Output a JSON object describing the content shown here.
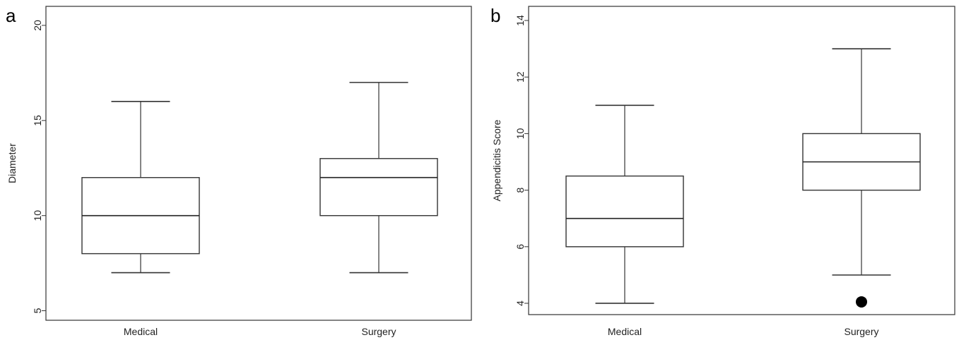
{
  "chart_data": [
    {
      "panel_label": "a",
      "type": "box",
      "categories": [
        "Medical",
        "Surgery"
      ],
      "ylabel": "Diameter",
      "ylim": [
        4.5,
        21
      ],
      "yticks": [
        5,
        10,
        15,
        20
      ],
      "boxes": [
        {
          "category": "Medical",
          "min": 7,
          "q1": 8,
          "median": 10,
          "q3": 12,
          "max": 16,
          "outliers": []
        },
        {
          "category": "Surgery",
          "min": 7,
          "q1": 10,
          "median": 12,
          "q3": 13,
          "max": 17,
          "outliers": []
        }
      ]
    },
    {
      "panel_label": "b",
      "type": "box",
      "categories": [
        "Medical",
        "Surgery"
      ],
      "ylabel": "Appendicitis Score",
      "ylim": [
        3.6,
        14.5
      ],
      "yticks": [
        4,
        6,
        8,
        10,
        12,
        14
      ],
      "boxes": [
        {
          "category": "Medical",
          "min": 4,
          "q1": 6,
          "median": 7,
          "q3": 8.5,
          "max": 11,
          "outliers": []
        },
        {
          "category": "Surgery",
          "min": 5,
          "q1": 8,
          "median": 9,
          "q3": 10,
          "max": 13,
          "outliers": [
            4.05
          ]
        }
      ]
    }
  ]
}
